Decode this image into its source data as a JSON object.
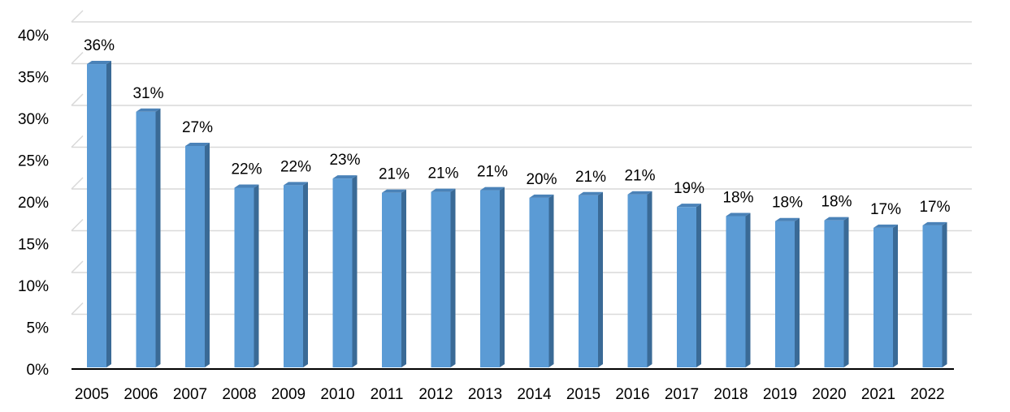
{
  "chart_data": {
    "type": "bar",
    "style": "3d-column",
    "categories": [
      "2005",
      "2006",
      "2007",
      "2008",
      "2009",
      "2010",
      "2011",
      "2012",
      "2013",
      "2014",
      "2015",
      "2016",
      "2017",
      "2018",
      "2019",
      "2020",
      "2021",
      "2022"
    ],
    "values": [
      36.5,
      30.8,
      26.7,
      21.7,
      22.0,
      22.8,
      21.1,
      21.2,
      21.4,
      20.5,
      20.8,
      20.9,
      19.4,
      18.3,
      17.7,
      17.8,
      16.9,
      17.2
    ],
    "data_labels": [
      "36%",
      "31%",
      "27%",
      "22%",
      "22%",
      "23%",
      "21%",
      "21%",
      "21%",
      "20%",
      "21%",
      "21%",
      "19%",
      "18%",
      "18%",
      "18%",
      "17%",
      "17%"
    ],
    "y_ticks": [
      "0%",
      "5%",
      "10%",
      "15%",
      "20%",
      "25%",
      "30%",
      "35%",
      "40%"
    ],
    "ylim": [
      0,
      40
    ],
    "y_unit": "%",
    "grid": true,
    "legend": "none",
    "title": "",
    "xlabel": "",
    "ylabel": "",
    "colors": {
      "bar_front": "#5b9bd5",
      "bar_side": "#3a6a96",
      "bar_top": "#4a82b8",
      "grid": "#d9d9d9",
      "axis": "#000000"
    }
  }
}
